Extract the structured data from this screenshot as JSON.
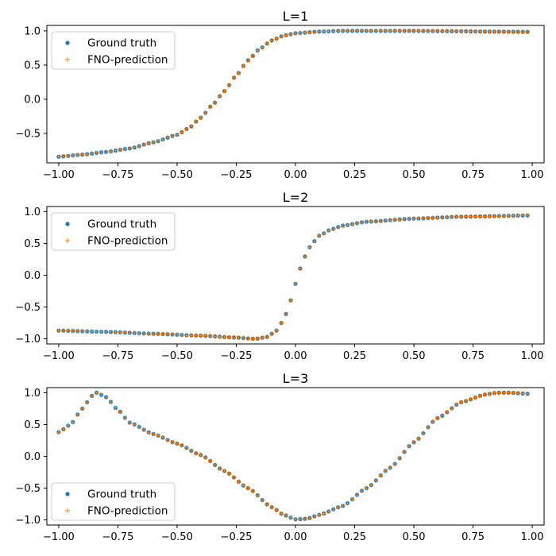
{
  "colors": {
    "ground_truth": "#1f77b4",
    "prediction": "#ff7f0e"
  },
  "chart_data": [
    {
      "type": "scatter",
      "title": "L=1",
      "xlim": [
        -1.05,
        1.05
      ],
      "ylim": [
        -0.93,
        1.08
      ],
      "x_ticks": [
        -1.0,
        -0.75,
        -0.5,
        -0.25,
        0.0,
        0.25,
        0.5,
        0.75,
        1.0
      ],
      "x_tick_labels": [
        "−1.00",
        "−0.75",
        "−0.50",
        "−0.25",
        "0.00",
        "0.25",
        "0.50",
        "0.75",
        "1.00"
      ],
      "y_ticks": [
        1.0,
        0.5,
        0.0,
        -0.5
      ],
      "y_tick_labels": [
        "1.0",
        "0.5",
        "0.0",
        "−0.5"
      ],
      "legend_position": "upper-left",
      "legend": [
        "Ground truth",
        "FNO-prediction"
      ],
      "series": [
        {
          "name": "Ground truth",
          "marker": "dot",
          "curve": "L1_profile: tanh step centred near x=-0.3, from -0.85 at x=-1 rising to 1.0, plateau slightly below 1 at x=1"
        },
        {
          "name": "FNO-prediction",
          "marker": "plus",
          "curve": "same as ground truth"
        }
      ]
    },
    {
      "type": "scatter",
      "title": "L=2",
      "xlim": [
        -1.05,
        1.05
      ],
      "ylim": [
        -1.08,
        1.08
      ],
      "x_ticks": [
        -1.0,
        -0.75,
        -0.5,
        -0.25,
        0.0,
        0.25,
        0.5,
        0.75,
        1.0
      ],
      "x_tick_labels": [
        "−1.00",
        "−0.75",
        "−0.50",
        "−0.25",
        "0.00",
        "0.25",
        "0.50",
        "0.75",
        "1.00"
      ],
      "y_ticks": [
        1.0,
        0.5,
        0.0,
        -0.5,
        -1.0
      ],
      "y_tick_labels": [
        "1.0",
        "0.5",
        "0.0",
        "−0.5",
        "−1.0"
      ],
      "legend_position": "upper-left",
      "legend": [
        "Ground truth",
        "FNO-prediction"
      ],
      "series": [
        {
          "name": "Ground truth",
          "marker": "dot",
          "curve": "L2_profile: slowly decreasing from -0.87 at x=-1 to -1.0 near x=-0.15, steep rise through 0 at x=0, to 0.95 at x=1"
        },
        {
          "name": "FNO-prediction",
          "marker": "plus",
          "curve": "same as ground truth"
        }
      ]
    },
    {
      "type": "scatter",
      "title": "L=3",
      "xlim": [
        -1.05,
        1.05
      ],
      "ylim": [
        -1.08,
        1.08
      ],
      "x_ticks": [
        -1.0,
        -0.75,
        -0.5,
        -0.25,
        0.0,
        0.25,
        0.5,
        0.75,
        1.0
      ],
      "x_tick_labels": [
        "−1.00",
        "−0.75",
        "−0.50",
        "−0.25",
        "0.00",
        "0.25",
        "0.50",
        "0.75",
        "1.00"
      ],
      "y_ticks": [
        1.0,
        0.5,
        0.0,
        -0.5,
        -1.0
      ],
      "y_tick_labels": [
        "1.0",
        "0.5",
        "0.0",
        "−0.5",
        "−1.0"
      ],
      "legend_position": "lower-left",
      "legend": [
        "Ground truth",
        "FNO-prediction"
      ],
      "series": [
        {
          "name": "Ground truth",
          "marker": "dot",
          "curve": "L3_profile: 0.38 at x=-1 rising to peak 1.0 at x=-0.84, decreasing to -1.0 at x=0, rising to 1.0 at x=0.85, 0.98 at x=1"
        },
        {
          "name": "FNO-prediction",
          "marker": "plus",
          "curve": "same as ground truth"
        }
      ]
    }
  ],
  "profiles": {
    "L1": [
      [
        -1.0,
        -0.84
      ],
      [
        -0.9,
        -0.81
      ],
      [
        -0.8,
        -0.77
      ],
      [
        -0.7,
        -0.72
      ],
      [
        -0.6,
        -0.63
      ],
      [
        -0.5,
        -0.52
      ],
      [
        -0.45,
        -0.42
      ],
      [
        -0.4,
        -0.27
      ],
      [
        -0.35,
        -0.08
      ],
      [
        -0.3,
        0.12
      ],
      [
        -0.25,
        0.35
      ],
      [
        -0.2,
        0.57
      ],
      [
        -0.15,
        0.74
      ],
      [
        -0.1,
        0.86
      ],
      [
        -0.05,
        0.93
      ],
      [
        0.0,
        0.965
      ],
      [
        0.1,
        0.99
      ],
      [
        0.2,
        1.0
      ],
      [
        0.3,
        1.0
      ],
      [
        0.5,
        1.0
      ],
      [
        0.7,
        0.995
      ],
      [
        0.8,
        0.99
      ],
      [
        1.0,
        0.985
      ]
    ],
    "L2": [
      [
        -1.0,
        -0.87
      ],
      [
        -0.8,
        -0.89
      ],
      [
        -0.6,
        -0.92
      ],
      [
        -0.4,
        -0.95
      ],
      [
        -0.25,
        -0.98
      ],
      [
        -0.17,
        -1.0
      ],
      [
        -0.12,
        -0.97
      ],
      [
        -0.08,
        -0.87
      ],
      [
        -0.05,
        -0.7
      ],
      [
        -0.03,
        -0.52
      ],
      [
        -0.01,
        -0.27
      ],
      [
        0.01,
        0.0
      ],
      [
        0.03,
        0.21
      ],
      [
        0.05,
        0.38
      ],
      [
        0.07,
        0.5
      ],
      [
        0.1,
        0.62
      ],
      [
        0.15,
        0.72
      ],
      [
        0.2,
        0.78
      ],
      [
        0.3,
        0.84
      ],
      [
        0.5,
        0.89
      ],
      [
        0.7,
        0.92
      ],
      [
        1.0,
        0.94
      ]
    ],
    "L3": [
      [
        -1.0,
        0.38
      ],
      [
        -0.95,
        0.5
      ],
      [
        -0.9,
        0.75
      ],
      [
        -0.86,
        0.95
      ],
      [
        -0.84,
        1.0
      ],
      [
        -0.8,
        0.93
      ],
      [
        -0.75,
        0.73
      ],
      [
        -0.7,
        0.53
      ],
      [
        -0.6,
        0.35
      ],
      [
        -0.5,
        0.2
      ],
      [
        -0.4,
        0.02
      ],
      [
        -0.3,
        -0.23
      ],
      [
        -0.2,
        -0.5
      ],
      [
        -0.1,
        -0.8
      ],
      [
        -0.05,
        -0.92
      ],
      [
        0.0,
        -0.99
      ],
      [
        0.05,
        -0.98
      ],
      [
        0.1,
        -0.92
      ],
      [
        0.2,
        -0.78
      ],
      [
        0.3,
        -0.5
      ],
      [
        0.4,
        -0.18
      ],
      [
        0.5,
        0.22
      ],
      [
        0.6,
        0.6
      ],
      [
        0.7,
        0.85
      ],
      [
        0.8,
        0.97
      ],
      [
        0.85,
        1.0
      ],
      [
        0.9,
        1.0
      ],
      [
        1.0,
        0.98
      ]
    ]
  }
}
